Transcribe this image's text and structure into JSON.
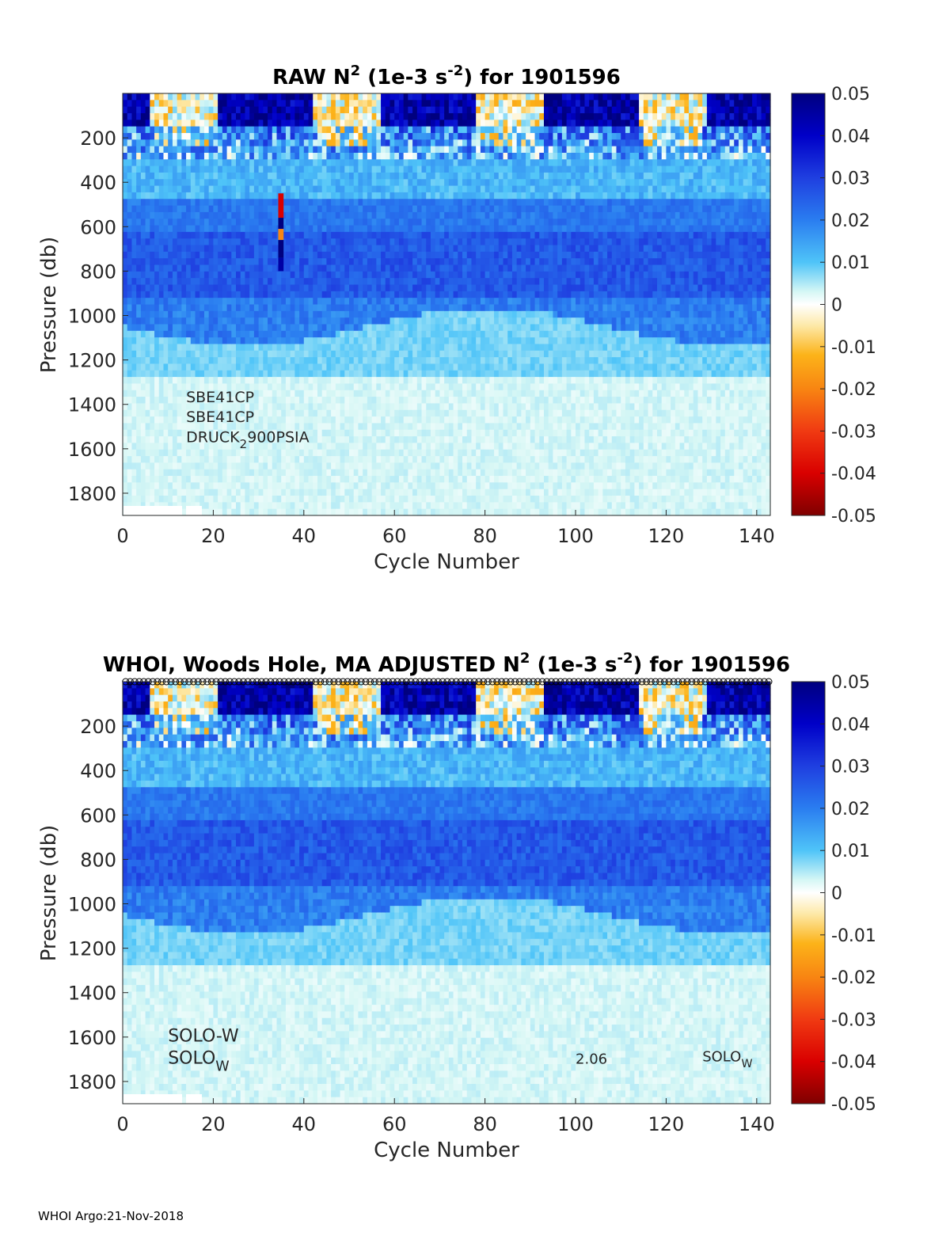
{
  "chart_data": [
    {
      "type": "heatmap",
      "title_main": "RAW N",
      "title_sup1": "2",
      "title_mid": " (1e-3 s",
      "title_sup2": "-2",
      "title_end": ") for 1901596",
      "xlabel": "Cycle Number",
      "ylabel": "Pressure (db)",
      "xlim": [
        0,
        143
      ],
      "ylim": [
        1900,
        0
      ],
      "xticks": [
        "0",
        "20",
        "40",
        "60",
        "80",
        "100",
        "120",
        "140"
      ],
      "yticks": [
        "200",
        "400",
        "600",
        "800",
        "1000",
        "1200",
        "1400",
        "1600",
        "1800"
      ],
      "clim": [
        -0.05,
        0.05
      ],
      "colorbar_ticks": [
        "0.05",
        "0.04",
        "0.03",
        "0.02",
        "0.01",
        "0",
        "-0.01",
        "-0.02",
        "-0.03",
        "-0.04",
        "-0.05"
      ],
      "annotations": [
        {
          "text": "SBE41CP",
          "x": 14,
          "y": 1390
        },
        {
          "text": "SBE41CP",
          "x": 14,
          "y": 1480
        },
        {
          "text": "DRUCK",
          "sub": "2",
          "after": "900PSIA",
          "x": 14,
          "y": 1570
        }
      ],
      "anomalies": [
        {
          "cycle": 34,
          "p_from": 450,
          "p_to": 560,
          "value": -0.04
        },
        {
          "cycle": 34,
          "p_from": 560,
          "p_to": 610,
          "value": 0.05
        },
        {
          "cycle": 34,
          "p_from": 610,
          "p_to": 660,
          "value": -0.02
        },
        {
          "cycle": 34,
          "p_from": 660,
          "p_to": 740,
          "value": 0.05
        },
        {
          "cycle": 34,
          "p_from": 740,
          "p_to": 800,
          "value": 0.045
        }
      ]
    },
    {
      "type": "heatmap",
      "title_main": "WHOI, Woods Hole, MA  ADJUSTED N",
      "title_sup1": "2",
      "title_mid": " (1e-3 s",
      "title_sup2": "-2",
      "title_end": ") for 1901596",
      "xlabel": "Cycle Number",
      "ylabel": "Pressure (db)",
      "xlim": [
        0,
        143
      ],
      "ylim": [
        1900,
        0
      ],
      "xticks": [
        "0",
        "20",
        "40",
        "60",
        "80",
        "100",
        "120",
        "140"
      ],
      "yticks": [
        "200",
        "400",
        "600",
        "800",
        "1000",
        "1200",
        "1400",
        "1600",
        "1800"
      ],
      "clim": [
        -0.05,
        0.05
      ],
      "colorbar_ticks": [
        "0.05",
        "0.04",
        "0.03",
        "0.02",
        "0.01",
        "0",
        "-0.01",
        "-0.02",
        "-0.03",
        "-0.04",
        "-0.05"
      ],
      "top_markers": true,
      "annotations": [
        {
          "text": "SOLO-W",
          "x": 10,
          "y": 1620,
          "size": 22
        },
        {
          "text": "SOLO",
          "sub": "W",
          "x": 10,
          "y": 1720,
          "size": 22
        },
        {
          "text": "2.06",
          "x": 100,
          "y": 1720,
          "size": 18
        },
        {
          "text": "SOLO",
          "sub": "W",
          "x": 128,
          "y": 1710,
          "size": 18
        }
      ]
    }
  ],
  "footer": "WHOI Argo:21-Nov-2018"
}
